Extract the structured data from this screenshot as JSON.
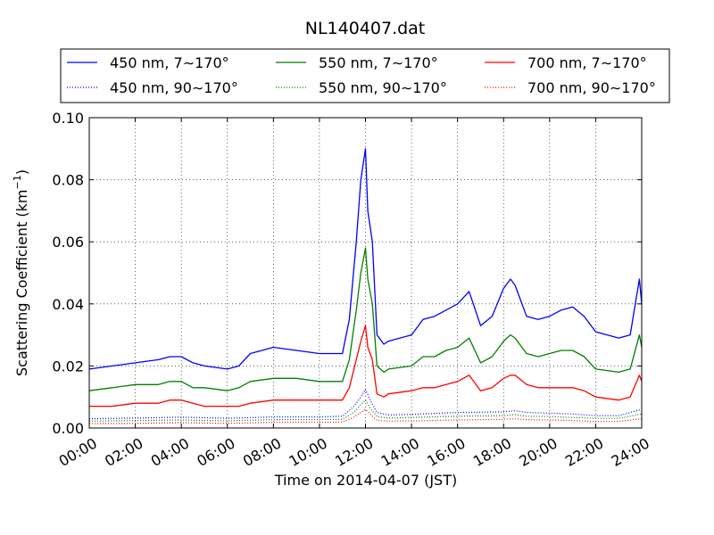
{
  "chart_data": {
    "type": "line",
    "title": "NL140407.dat",
    "xlabel": "Time on 2014-04-07 (JST)",
    "ylabel_text": "Scattering Coefficient (km",
    "ylabel_exponent": "−1",
    "ylabel_close": ")",
    "xlim": [
      0,
      24
    ],
    "ylim": [
      0,
      0.1
    ],
    "grid": true,
    "legend_position": "top",
    "x_tick_values": [
      0,
      2,
      4,
      6,
      8,
      10,
      12,
      14,
      16,
      18,
      20,
      22,
      24
    ],
    "x_tick_labels": [
      "00:00",
      "02:00",
      "04:00",
      "06:00",
      "08:00",
      "10:00",
      "12:00",
      "14:00",
      "16:00",
      "18:00",
      "20:00",
      "22:00",
      "24:00"
    ],
    "y_tick_values": [
      0,
      0.02,
      0.04,
      0.06,
      0.08,
      0.1
    ],
    "y_tick_labels": [
      "0.00",
      "0.02",
      "0.04",
      "0.06",
      "0.08",
      "0.10"
    ],
    "series": [
      {
        "name": "450 nm, 7∼170°",
        "color": "#0000ff",
        "style": "solid",
        "x": [
          0,
          1,
          2,
          3,
          3.5,
          4,
          4.5,
          5,
          6,
          6.5,
          7,
          8,
          9,
          10,
          11,
          11.3,
          11.6,
          11.8,
          12.0,
          12.1,
          12.3,
          12.5,
          12.8,
          13,
          14,
          14.5,
          15,
          15.5,
          16,
          16.5,
          17,
          17.5,
          18,
          18.3,
          18.5,
          19,
          19.5,
          20,
          20.5,
          21,
          21.5,
          22,
          23,
          23.5,
          23.9,
          24
        ],
        "y": [
          0.019,
          0.02,
          0.021,
          0.022,
          0.023,
          0.023,
          0.021,
          0.02,
          0.019,
          0.02,
          0.024,
          0.026,
          0.025,
          0.024,
          0.024,
          0.035,
          0.06,
          0.08,
          0.09,
          0.07,
          0.06,
          0.03,
          0.027,
          0.028,
          0.03,
          0.035,
          0.036,
          0.038,
          0.04,
          0.044,
          0.033,
          0.036,
          0.045,
          0.048,
          0.046,
          0.036,
          0.035,
          0.036,
          0.038,
          0.039,
          0.036,
          0.031,
          0.029,
          0.03,
          0.048,
          0.04
        ]
      },
      {
        "name": "550 nm, 7∼170°",
        "color": "#008000",
        "style": "solid",
        "x": [
          0,
          1,
          2,
          3,
          3.5,
          4,
          4.5,
          5,
          6,
          6.5,
          7,
          8,
          9,
          10,
          11,
          11.3,
          11.6,
          11.8,
          12.0,
          12.1,
          12.3,
          12.5,
          12.8,
          13,
          14,
          14.5,
          15,
          15.5,
          16,
          16.5,
          17,
          17.5,
          18,
          18.3,
          18.5,
          19,
          19.5,
          20,
          20.5,
          21,
          21.5,
          22,
          23,
          23.5,
          23.9,
          24
        ],
        "y": [
          0.012,
          0.013,
          0.014,
          0.014,
          0.015,
          0.015,
          0.013,
          0.013,
          0.012,
          0.013,
          0.015,
          0.016,
          0.016,
          0.015,
          0.015,
          0.022,
          0.038,
          0.05,
          0.058,
          0.048,
          0.04,
          0.02,
          0.018,
          0.019,
          0.02,
          0.023,
          0.023,
          0.025,
          0.026,
          0.029,
          0.021,
          0.023,
          0.028,
          0.03,
          0.029,
          0.024,
          0.023,
          0.024,
          0.025,
          0.025,
          0.023,
          0.019,
          0.018,
          0.019,
          0.03,
          0.026
        ]
      },
      {
        "name": "700 nm, 7∼170°",
        "color": "#ff0000",
        "style": "solid",
        "x": [
          0,
          1,
          2,
          3,
          3.5,
          4,
          4.5,
          5,
          6,
          6.5,
          7,
          8,
          9,
          10,
          11,
          11.3,
          11.6,
          11.8,
          12.0,
          12.1,
          12.3,
          12.5,
          12.8,
          13,
          14,
          14.5,
          15,
          15.5,
          16,
          16.5,
          17,
          17.5,
          18,
          18.3,
          18.5,
          19,
          19.5,
          20,
          20.5,
          21,
          21.5,
          22,
          23,
          23.5,
          23.9,
          24
        ],
        "y": [
          0.007,
          0.007,
          0.008,
          0.008,
          0.009,
          0.009,
          0.008,
          0.007,
          0.007,
          0.007,
          0.008,
          0.009,
          0.009,
          0.009,
          0.009,
          0.013,
          0.022,
          0.028,
          0.033,
          0.026,
          0.022,
          0.011,
          0.01,
          0.011,
          0.012,
          0.013,
          0.013,
          0.014,
          0.015,
          0.017,
          0.012,
          0.013,
          0.016,
          0.017,
          0.017,
          0.014,
          0.013,
          0.013,
          0.013,
          0.013,
          0.012,
          0.01,
          0.009,
          0.01,
          0.017,
          0.015
        ]
      },
      {
        "name": "450 nm, 90∼170°",
        "color": "#0000ff",
        "style": "dotted",
        "x": [
          0,
          2,
          4,
          6,
          8,
          10,
          11,
          11.5,
          11.8,
          12.0,
          12.2,
          12.5,
          13,
          14,
          16,
          18,
          18.5,
          19,
          20,
          21,
          22,
          23,
          24
        ],
        "y": [
          0.003,
          0.0032,
          0.0035,
          0.0031,
          0.0036,
          0.0036,
          0.0038,
          0.007,
          0.01,
          0.0125,
          0.009,
          0.005,
          0.0042,
          0.0044,
          0.005,
          0.0052,
          0.0056,
          0.005,
          0.0048,
          0.0045,
          0.004,
          0.004,
          0.006
        ]
      },
      {
        "name": "550 nm, 90∼170°",
        "color": "#008000",
        "style": "dotted",
        "x": [
          0,
          2,
          4,
          6,
          8,
          10,
          11,
          11.5,
          11.8,
          12.0,
          12.2,
          12.5,
          13,
          14,
          16,
          18,
          18.5,
          19,
          20,
          21,
          22,
          23,
          24
        ],
        "y": [
          0.0022,
          0.0024,
          0.0026,
          0.0023,
          0.0027,
          0.0027,
          0.0028,
          0.005,
          0.0075,
          0.009,
          0.0065,
          0.0037,
          0.0032,
          0.0034,
          0.0038,
          0.004,
          0.0043,
          0.0038,
          0.0037,
          0.0034,
          0.0031,
          0.0031,
          0.0045
        ]
      },
      {
        "name": "700 nm, 90∼170°",
        "color": "#ff0000",
        "style": "dotted",
        "x": [
          0,
          2,
          4,
          6,
          8,
          10,
          11,
          11.5,
          11.8,
          12.0,
          12.2,
          12.5,
          13,
          14,
          16,
          18,
          18.5,
          19,
          20,
          21,
          22,
          23,
          24
        ],
        "y": [
          0.0014,
          0.0015,
          0.0017,
          0.0015,
          0.0018,
          0.0018,
          0.0019,
          0.0035,
          0.005,
          0.006,
          0.0045,
          0.0025,
          0.0022,
          0.0023,
          0.0026,
          0.0028,
          0.003,
          0.0027,
          0.0026,
          0.0024,
          0.0021,
          0.0021,
          0.003
        ]
      }
    ]
  }
}
